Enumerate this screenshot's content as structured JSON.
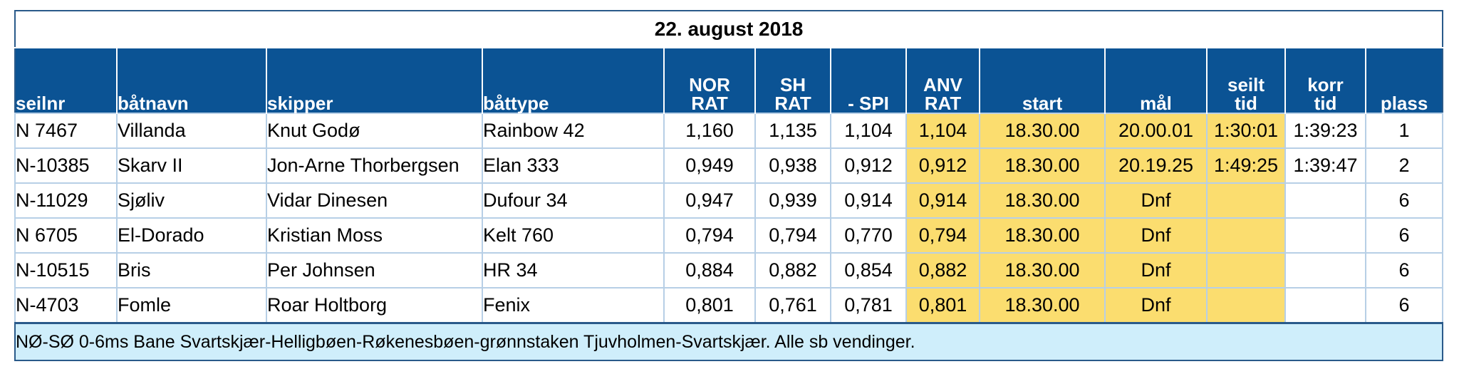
{
  "race": {
    "date": "22. august 2018",
    "headers": {
      "seilnr": "seilnr",
      "batnavn": "båtnavn",
      "skipper": "skipper",
      "battype": "båttype",
      "nor_rat_1": "NOR",
      "nor_rat_2": "RAT",
      "sh_rat_1": "SH",
      "sh_rat_2": "RAT",
      "spi": "- SPI",
      "anv_rat_1": "ANV",
      "anv_rat_2": "RAT",
      "start": "start",
      "mal": "mål",
      "seilt_tid_1": "seilt",
      "seilt_tid_2": "tid",
      "korr_tid_1": "korr",
      "korr_tid_2": "tid",
      "plass": "plass"
    },
    "rows": [
      {
        "seilnr": "N 7467",
        "batnavn": "Villanda",
        "skipper": "Knut Godø",
        "battype": "Rainbow 42",
        "nor_rat": "1,160",
        "sh_rat": "1,135",
        "spi": "1,104",
        "anv_rat": "1,104",
        "start": "18.30.00",
        "mal": "20.00.01",
        "seilt_tid": "1:30:01",
        "korr_tid": "1:39:23",
        "plass": "1"
      },
      {
        "seilnr": "N-10385",
        "batnavn": "Skarv II",
        "skipper": "Jon-Arne Thorbergsen",
        "battype": "Elan 333",
        "nor_rat": "0,949",
        "sh_rat": "0,938",
        "spi": "0,912",
        "anv_rat": "0,912",
        "start": "18.30.00",
        "mal": "20.19.25",
        "seilt_tid": "1:49:25",
        "korr_tid": "1:39:47",
        "plass": "2"
      },
      {
        "seilnr": "N-11029",
        "batnavn": "Sjøliv",
        "skipper": "Vidar Dinesen",
        "battype": "Dufour 34",
        "nor_rat": "0,947",
        "sh_rat": "0,939",
        "spi": "0,914",
        "anv_rat": "0,914",
        "start": "18.30.00",
        "mal": "Dnf",
        "seilt_tid": "",
        "korr_tid": "",
        "plass": "6"
      },
      {
        "seilnr": "N 6705",
        "batnavn": "El-Dorado",
        "skipper": "Kristian Moss",
        "battype": "Kelt 760",
        "nor_rat": "0,794",
        "sh_rat": "0,794",
        "spi": "0,770",
        "anv_rat": "0,794",
        "start": "18.30.00",
        "mal": "Dnf",
        "seilt_tid": "",
        "korr_tid": "",
        "plass": "6"
      },
      {
        "seilnr": "N-10515",
        "batnavn": "Bris",
        "skipper": "Per Johnsen",
        "battype": "HR 34",
        "nor_rat": "0,884",
        "sh_rat": "0,882",
        "spi": "0,854",
        "anv_rat": "0,882",
        "start": "18.30.00",
        "mal": "Dnf",
        "seilt_tid": "",
        "korr_tid": "",
        "plass": "6"
      },
      {
        "seilnr": "N-4703",
        "batnavn": "Fomle",
        "skipper": "Roar Holtborg",
        "battype": "Fenix",
        "nor_rat": "0,801",
        "sh_rat": "0,761",
        "spi": "0,781",
        "anv_rat": "0,801",
        "start": "18.30.00",
        "mal": "Dnf",
        "seilt_tid": "",
        "korr_tid": "",
        "plass": "6"
      }
    ],
    "note": "NØ-SØ 0-6ms Bane Svartskjær-Helligbøen-Røkenesbøen-grønnstaken Tjuvholmen-Svartskjær. Alle sb vendinger.",
    "colors": {
      "header_bg": "#0b5394",
      "highlight": "#fbdd6f",
      "note_bg": "#cfeefb"
    }
  }
}
